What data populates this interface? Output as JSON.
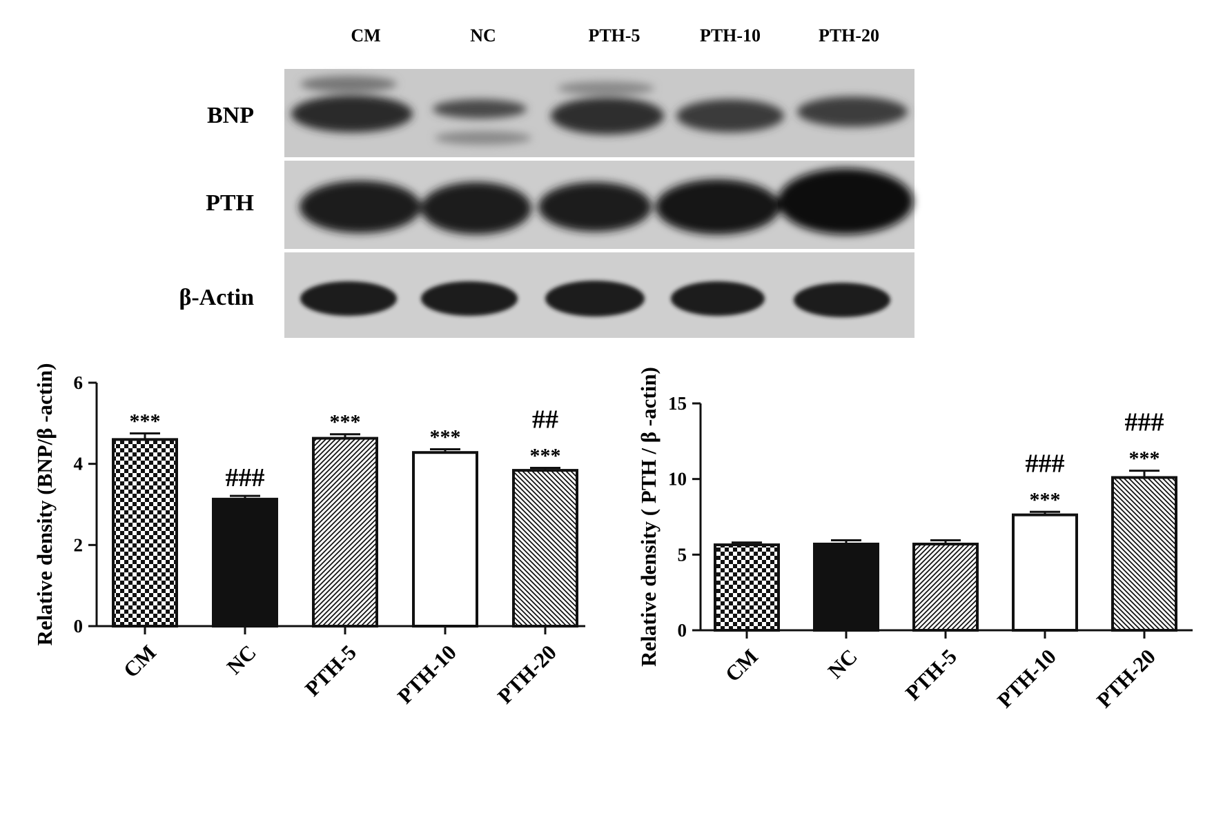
{
  "blot": {
    "lanes": [
      "CM",
      "NC",
      "PTH-5",
      "PTH-10",
      "PTH-20"
    ],
    "rows": [
      "BNP",
      "PTH",
      "β-Actin"
    ]
  },
  "chart_data": [
    {
      "type": "bar",
      "ylabel": "Relative density (BNP/β -actin)",
      "categories": [
        "CM",
        "NC",
        "PTH-5",
        "PTH-10",
        "PTH-20"
      ],
      "values": [
        4.6,
        3.13,
        4.63,
        4.28,
        3.84
      ],
      "errors": [
        0.15,
        0.08,
        0.1,
        0.08,
        0.06
      ],
      "patterns": [
        "checker",
        "solid",
        "diag-right",
        "empty",
        "diag-left"
      ],
      "annotations": [
        [
          "***"
        ],
        [
          "###"
        ],
        [
          "***"
        ],
        [
          "***"
        ],
        [
          "##",
          "***"
        ]
      ],
      "ylim": [
        0,
        6
      ],
      "yticks": [
        0,
        2,
        4,
        6
      ]
    },
    {
      "type": "bar",
      "ylabel": "Relative density ( PTH / β -actin)",
      "categories": [
        "CM",
        "NC",
        "PTH-5",
        "PTH-10",
        "PTH-20"
      ],
      "values": [
        5.65,
        5.7,
        5.7,
        7.63,
        10.1
      ],
      "errors": [
        0.15,
        0.25,
        0.25,
        0.2,
        0.45
      ],
      "patterns": [
        "checker",
        "solid",
        "diag-right",
        "empty",
        "diag-left"
      ],
      "annotations": [
        [],
        [],
        [],
        [
          "###",
          "***"
        ],
        [
          "###",
          "***"
        ]
      ],
      "ylim": [
        0,
        15
      ],
      "yticks": [
        0,
        5,
        10,
        15
      ]
    }
  ]
}
